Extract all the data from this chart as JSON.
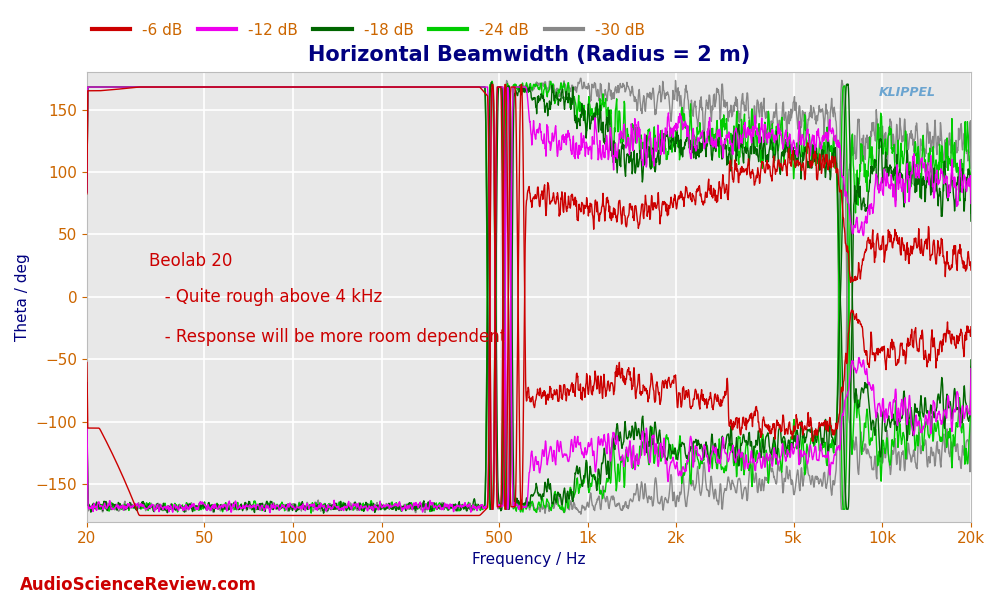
{
  "title": "Horizontal Beamwidth (Radius = 2 m)",
  "xlabel": "Frequency / Hz",
  "ylabel": "Theta / deg",
  "xlim": [
    20,
    20000
  ],
  "ylim": [
    -180,
    180
  ],
  "yticks": [
    -150,
    -100,
    -50,
    0,
    50,
    100,
    150
  ],
  "xtick_labels": [
    "20",
    "50",
    "100",
    "200",
    "500",
    "1k",
    "2k",
    "5k",
    "10k",
    "20k"
  ],
  "xtick_values": [
    20,
    50,
    100,
    200,
    500,
    1000,
    2000,
    5000,
    10000,
    20000
  ],
  "annotation_lines": [
    "Beolab 20",
    "   - Quite rough above 4 kHz",
    "   - Response will be more room dependent"
  ],
  "annotation_color": "#cc0000",
  "watermark": "KLIPPEL",
  "asr_text": "AudioScienceReview.com",
  "legend_labels": [
    "-6 dB",
    "-12 dB",
    "-18 dB",
    "-24 dB",
    "-30 dB"
  ],
  "legend_colors": [
    "#cc0000",
    "#ee00ee",
    "#006600",
    "#00cc00",
    "#888888"
  ],
  "background_color": "#e8e8e8",
  "grid_color": "#ffffff",
  "title_color": "#000080",
  "axis_label_color": "#000080",
  "tick_color": "#cc6600"
}
